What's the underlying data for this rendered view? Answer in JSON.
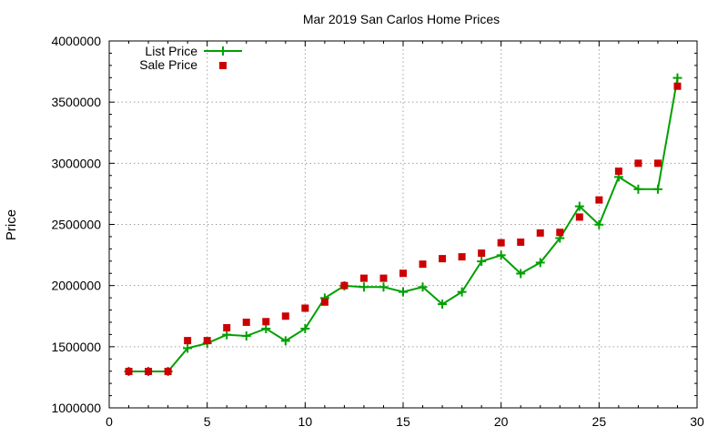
{
  "chart_data": {
    "type": "line",
    "title": "Mar 2019 San Carlos Home Prices",
    "xlabel": "",
    "ylabel": "Price",
    "xlim": [
      0,
      30
    ],
    "ylim": [
      1000000,
      4000000
    ],
    "xticks": [
      0,
      5,
      10,
      15,
      20,
      25,
      30
    ],
    "yticks": [
      1000000,
      1500000,
      2000000,
      2500000,
      3000000,
      3500000,
      4000000
    ],
    "grid": true,
    "legend": "top-left",
    "x": [
      1,
      2,
      3,
      4,
      5,
      6,
      7,
      8,
      9,
      10,
      11,
      12,
      13,
      14,
      15,
      16,
      17,
      18,
      19,
      20,
      21,
      22,
      23,
      24,
      25,
      26,
      27,
      28,
      29
    ],
    "series": [
      {
        "name": "List Price",
        "kind": "line-points",
        "color": "#00a000",
        "marker": "plus",
        "values": [
          1298000,
          1298000,
          1298000,
          1488000,
          1528000,
          1598000,
          1588000,
          1648000,
          1548000,
          1648000,
          1898000,
          1998000,
          1988000,
          1988000,
          1948000,
          1988000,
          1848000,
          1948000,
          2198000,
          2248000,
          2098000,
          2188000,
          2388000,
          2648000,
          2498000,
          2888000,
          2788000,
          2788000,
          3698000
        ]
      },
      {
        "name": "Sale Price",
        "kind": "points",
        "color": "#cc0000",
        "marker": "square",
        "values": [
          1298000,
          1298000,
          1298000,
          1550000,
          1550000,
          1655000,
          1700000,
          1705000,
          1750000,
          1815000,
          1865000,
          2000000,
          2060000,
          2060000,
          2100000,
          2175000,
          2220000,
          2235000,
          2265000,
          2350000,
          2355000,
          2430000,
          2435000,
          2560000,
          2700000,
          2935000,
          3000000,
          3000000,
          3630000
        ]
      }
    ]
  }
}
